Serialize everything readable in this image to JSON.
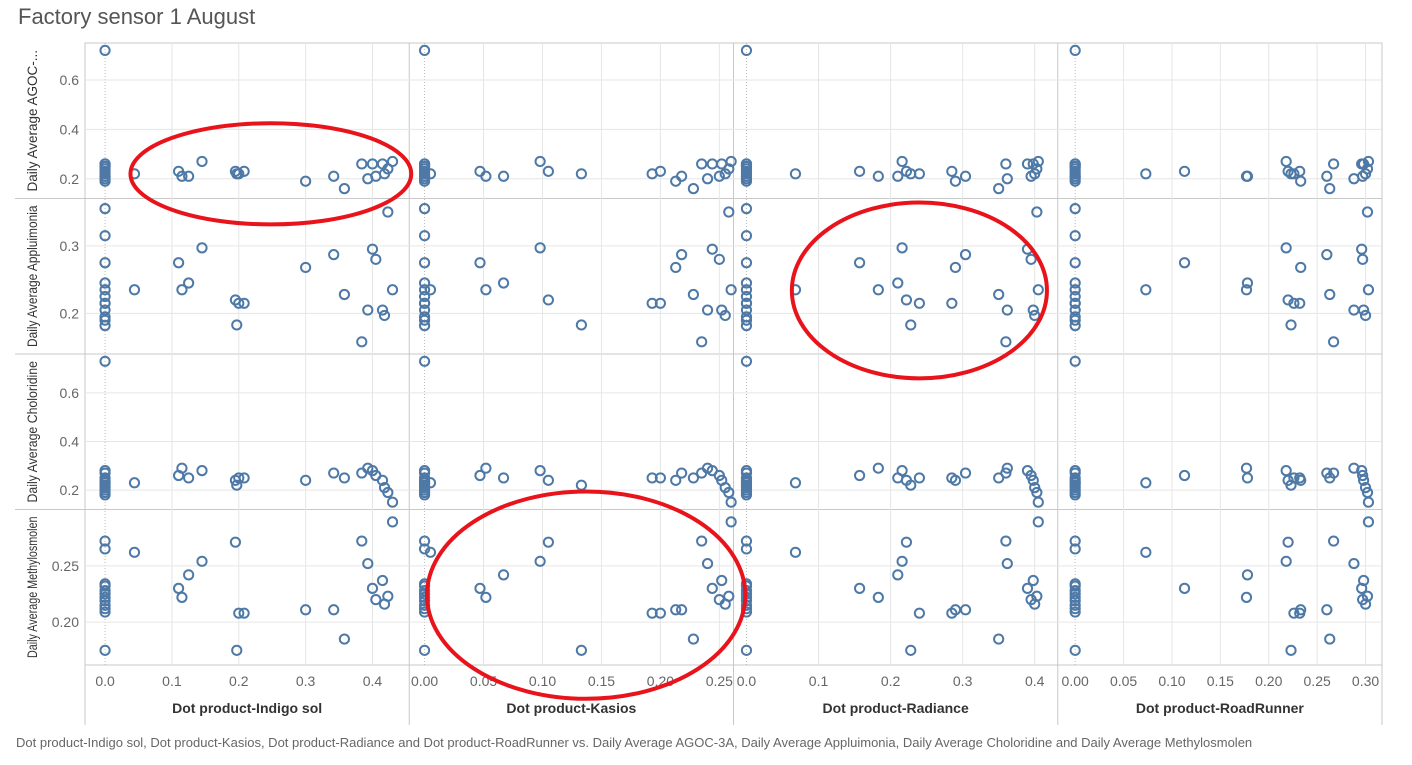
{
  "title": "Factory sensor 1 August",
  "caption": "Dot product-Indigo sol, Dot product-Kasios, Dot product-Radiance and Dot product-RoadRunner vs. Daily Average  AGOC-3A, Daily Average  Appluimonia, Daily Average  Choloridine and Daily Average  Methylosmolen",
  "colors": {
    "marker": "#4e79a7",
    "highlight": "#e8131b",
    "grid": "#e6e6e6",
    "border": "#c8c8c8"
  },
  "chart_data": {
    "type": "scatter",
    "grid": true,
    "x_columns": [
      {
        "label": "Dot product-Indigo sol",
        "xlim": [
          -0.03,
          0.455
        ],
        "ticks": [
          0.0,
          0.1,
          0.2,
          0.3,
          0.4
        ],
        "tick_labels": [
          "0.0",
          "0.1",
          "0.2",
          "0.3",
          "0.4"
        ],
        "x": [
          0.0,
          0.0,
          0.0,
          0.0,
          0.0,
          0.0,
          0.0,
          0.0,
          0.0,
          0.0,
          0.0,
          0.0,
          0.044,
          0.11,
          0.115,
          0.125,
          0.145,
          0.195,
          0.197,
          0.2,
          0.208,
          0.3,
          0.342,
          0.358,
          0.384,
          0.393,
          0.4,
          0.405,
          0.415,
          0.418,
          0.423,
          0.43
        ]
      },
      {
        "label": "Dot product-Kasios",
        "xlim": [
          -0.013,
          0.262
        ],
        "ticks": [
          0.0,
          0.05,
          0.1,
          0.15,
          0.2,
          0.25
        ],
        "tick_labels": [
          "0.00",
          "0.05",
          "0.10",
          "0.15",
          "0.20",
          "0.25"
        ],
        "x": [
          0.0,
          0.0,
          0.0,
          0.0,
          0.0,
          0.0,
          0.0,
          0.0,
          0.0,
          0.0,
          0.0,
          0.0,
          0.005,
          0.047,
          0.052,
          0.067,
          0.098,
          0.105,
          0.133,
          0.193,
          0.2,
          0.213,
          0.218,
          0.228,
          0.235,
          0.24,
          0.244,
          0.25,
          0.252,
          0.255,
          0.258,
          0.26
        ]
      },
      {
        "label": "Dot product-Radiance",
        "xlim": [
          -0.018,
          0.432
        ],
        "ticks": [
          0.0,
          0.1,
          0.2,
          0.3,
          0.4
        ],
        "tick_labels": [
          "0.0",
          "0.1",
          "0.2",
          "0.3",
          "0.4"
        ],
        "x": [
          0.0,
          0.0,
          0.0,
          0.0,
          0.0,
          0.0,
          0.0,
          0.0,
          0.0,
          0.0,
          0.0,
          0.0,
          0.068,
          0.157,
          0.183,
          0.21,
          0.216,
          0.222,
          0.228,
          0.24,
          0.285,
          0.29,
          0.304,
          0.35,
          0.36,
          0.362,
          0.39,
          0.395,
          0.398,
          0.4,
          0.403,
          0.405
        ]
      },
      {
        "label": "Dot product-RoadRunner",
        "xlim": [
          -0.018,
          0.317
        ],
        "ticks": [
          0.0,
          0.05,
          0.1,
          0.15,
          0.2,
          0.25,
          0.3
        ],
        "tick_labels": [
          "0.00",
          "0.05",
          "0.10",
          "0.15",
          "0.20",
          "0.25",
          "0.30"
        ],
        "x": [
          0.0,
          0.0,
          0.0,
          0.0,
          0.0,
          0.0,
          0.0,
          0.0,
          0.0,
          0.0,
          0.0,
          0.0,
          0.073,
          0.113,
          0.177,
          0.178,
          0.218,
          0.22,
          0.223,
          0.226,
          0.232,
          0.233,
          0.26,
          0.263,
          0.267,
          0.288,
          0.296,
          0.297,
          0.298,
          0.3,
          0.302,
          0.303
        ]
      }
    ],
    "y_rows": [
      {
        "label": "Daily Average  AGOC-...",
        "ylim": [
          0.12,
          0.75
        ],
        "ticks": [
          0.2,
          0.4,
          0.6
        ],
        "tick_labels": [
          "0.2",
          "0.4",
          "0.6"
        ],
        "y": [
          0.72,
          0.26,
          0.25,
          0.24,
          0.23,
          0.22,
          0.2,
          0.19,
          0.21,
          0.25,
          0.26,
          0.21,
          0.22,
          0.23,
          0.21,
          0.21,
          0.27,
          0.23,
          0.22,
          0.22,
          0.23,
          0.19,
          0.21,
          0.16,
          0.26,
          0.2,
          0.26,
          0.21,
          0.26,
          0.22,
          0.24,
          0.27
        ]
      },
      {
        "label": "Daily Average  Appluimonia",
        "ylim": [
          0.14,
          0.37
        ],
        "ticks": [
          0.2,
          0.3
        ],
        "tick_labels": [
          "0.2",
          "0.3"
        ],
        "y": [
          0.355,
          0.315,
          0.275,
          0.245,
          0.235,
          0.225,
          0.215,
          0.205,
          0.195,
          0.19,
          0.182,
          0.215,
          0.235,
          0.275,
          0.235,
          0.245,
          0.297,
          0.22,
          0.183,
          0.215,
          0.215,
          0.268,
          0.287,
          0.228,
          0.158,
          0.205,
          0.295,
          0.28,
          0.205,
          0.197,
          0.35,
          0.235
        ]
      },
      {
        "label": "Daily Average  Choloridine",
        "ylim": [
          0.12,
          0.76
        ],
        "ticks": [
          0.2,
          0.4,
          0.6
        ],
        "tick_labels": [
          "0.2",
          "0.4",
          "0.6"
        ],
        "y": [
          0.73,
          0.28,
          0.27,
          0.25,
          0.24,
          0.23,
          0.22,
          0.21,
          0.2,
          0.19,
          0.18,
          0.23,
          0.23,
          0.26,
          0.29,
          0.25,
          0.28,
          0.24,
          0.22,
          0.25,
          0.25,
          0.24,
          0.27,
          0.25,
          0.27,
          0.29,
          0.28,
          0.26,
          0.24,
          0.21,
          0.19,
          0.15
        ]
      },
      {
        "label": "Daily Average  Methylosmolen",
        "ylim": [
          0.162,
          0.3
        ],
        "ticks": [
          0.2,
          0.25
        ],
        "tick_labels": [
          "0.20",
          "0.25"
        ],
        "y": [
          0.272,
          0.265,
          0.234,
          0.232,
          0.228,
          0.225,
          0.222,
          0.219,
          0.215,
          0.212,
          0.209,
          0.175,
          0.262,
          0.23,
          0.222,
          0.242,
          0.254,
          0.271,
          0.175,
          0.208,
          0.208,
          0.211,
          0.211,
          0.185,
          0.272,
          0.252,
          0.23,
          0.22,
          0.237,
          0.216,
          0.223,
          0.289
        ]
      }
    ],
    "highlights": [
      {
        "row": 0,
        "col": 0,
        "cx": 0.248,
        "cy": 0.22,
        "rx": 0.21,
        "ry": 0.205
      },
      {
        "row": 1,
        "col": 2,
        "cx": 0.24,
        "cy": 0.234,
        "rx": 0.177,
        "ry": 0.13
      },
      {
        "row": 3,
        "col": 1,
        "cx": 0.137,
        "cy": 0.224,
        "rx": 0.135,
        "ry": 0.092
      }
    ]
  }
}
